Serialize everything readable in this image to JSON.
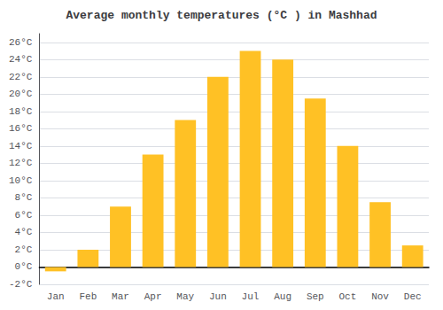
{
  "chart_data": {
    "type": "bar",
    "title": "Average monthly temperatures (°C ) in Mashhad",
    "categories": [
      "Jan",
      "Feb",
      "Mar",
      "Apr",
      "May",
      "Jun",
      "Jul",
      "Aug",
      "Sep",
      "Oct",
      "Nov",
      "Dec"
    ],
    "values": [
      -0.5,
      2.0,
      7.0,
      13.0,
      17.0,
      22.0,
      25.0,
      24.0,
      19.5,
      14.0,
      7.5,
      2.5
    ],
    "color": "#FFC125",
    "ylim": [
      -2,
      27
    ],
    "yticks": [
      {
        "value": -2,
        "label": "-2°C"
      },
      {
        "value": 0,
        "label": "0°C"
      },
      {
        "value": 2,
        "label": "2°C"
      },
      {
        "value": 4,
        "label": "4°C"
      },
      {
        "value": 6,
        "label": "6°C"
      },
      {
        "value": 8,
        "label": "8°C"
      },
      {
        "value": 10,
        "label": "10°C"
      },
      {
        "value": 12,
        "label": "12°C"
      },
      {
        "value": 14,
        "label": "14°C"
      },
      {
        "value": 16,
        "label": "16°C"
      },
      {
        "value": 18,
        "label": "18°C"
      },
      {
        "value": 20,
        "label": "20°C"
      },
      {
        "value": 22,
        "label": "22°C"
      },
      {
        "value": 24,
        "label": "24°C"
      },
      {
        "value": 26,
        "label": "26°C"
      }
    ],
    "grid": true
  }
}
